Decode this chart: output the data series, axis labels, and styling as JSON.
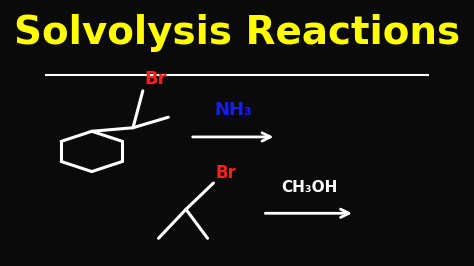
{
  "title": "Solvolysis Reactions",
  "title_color": "#FFFF00",
  "title_fontsize": 28,
  "background_color": "#0a0a0a",
  "line_color": "#FFFFFF",
  "br_color": "#FF2020",
  "nh3_color": "#1a1aff",
  "arrow_color": "#FFFFFF",
  "struct_color": "#FFFFFF",
  "reaction1_br_label": "Br",
  "reaction1_reagent": "NH₃",
  "reaction2_br_label": "Br",
  "reaction2_reagent": "CH₃OH"
}
